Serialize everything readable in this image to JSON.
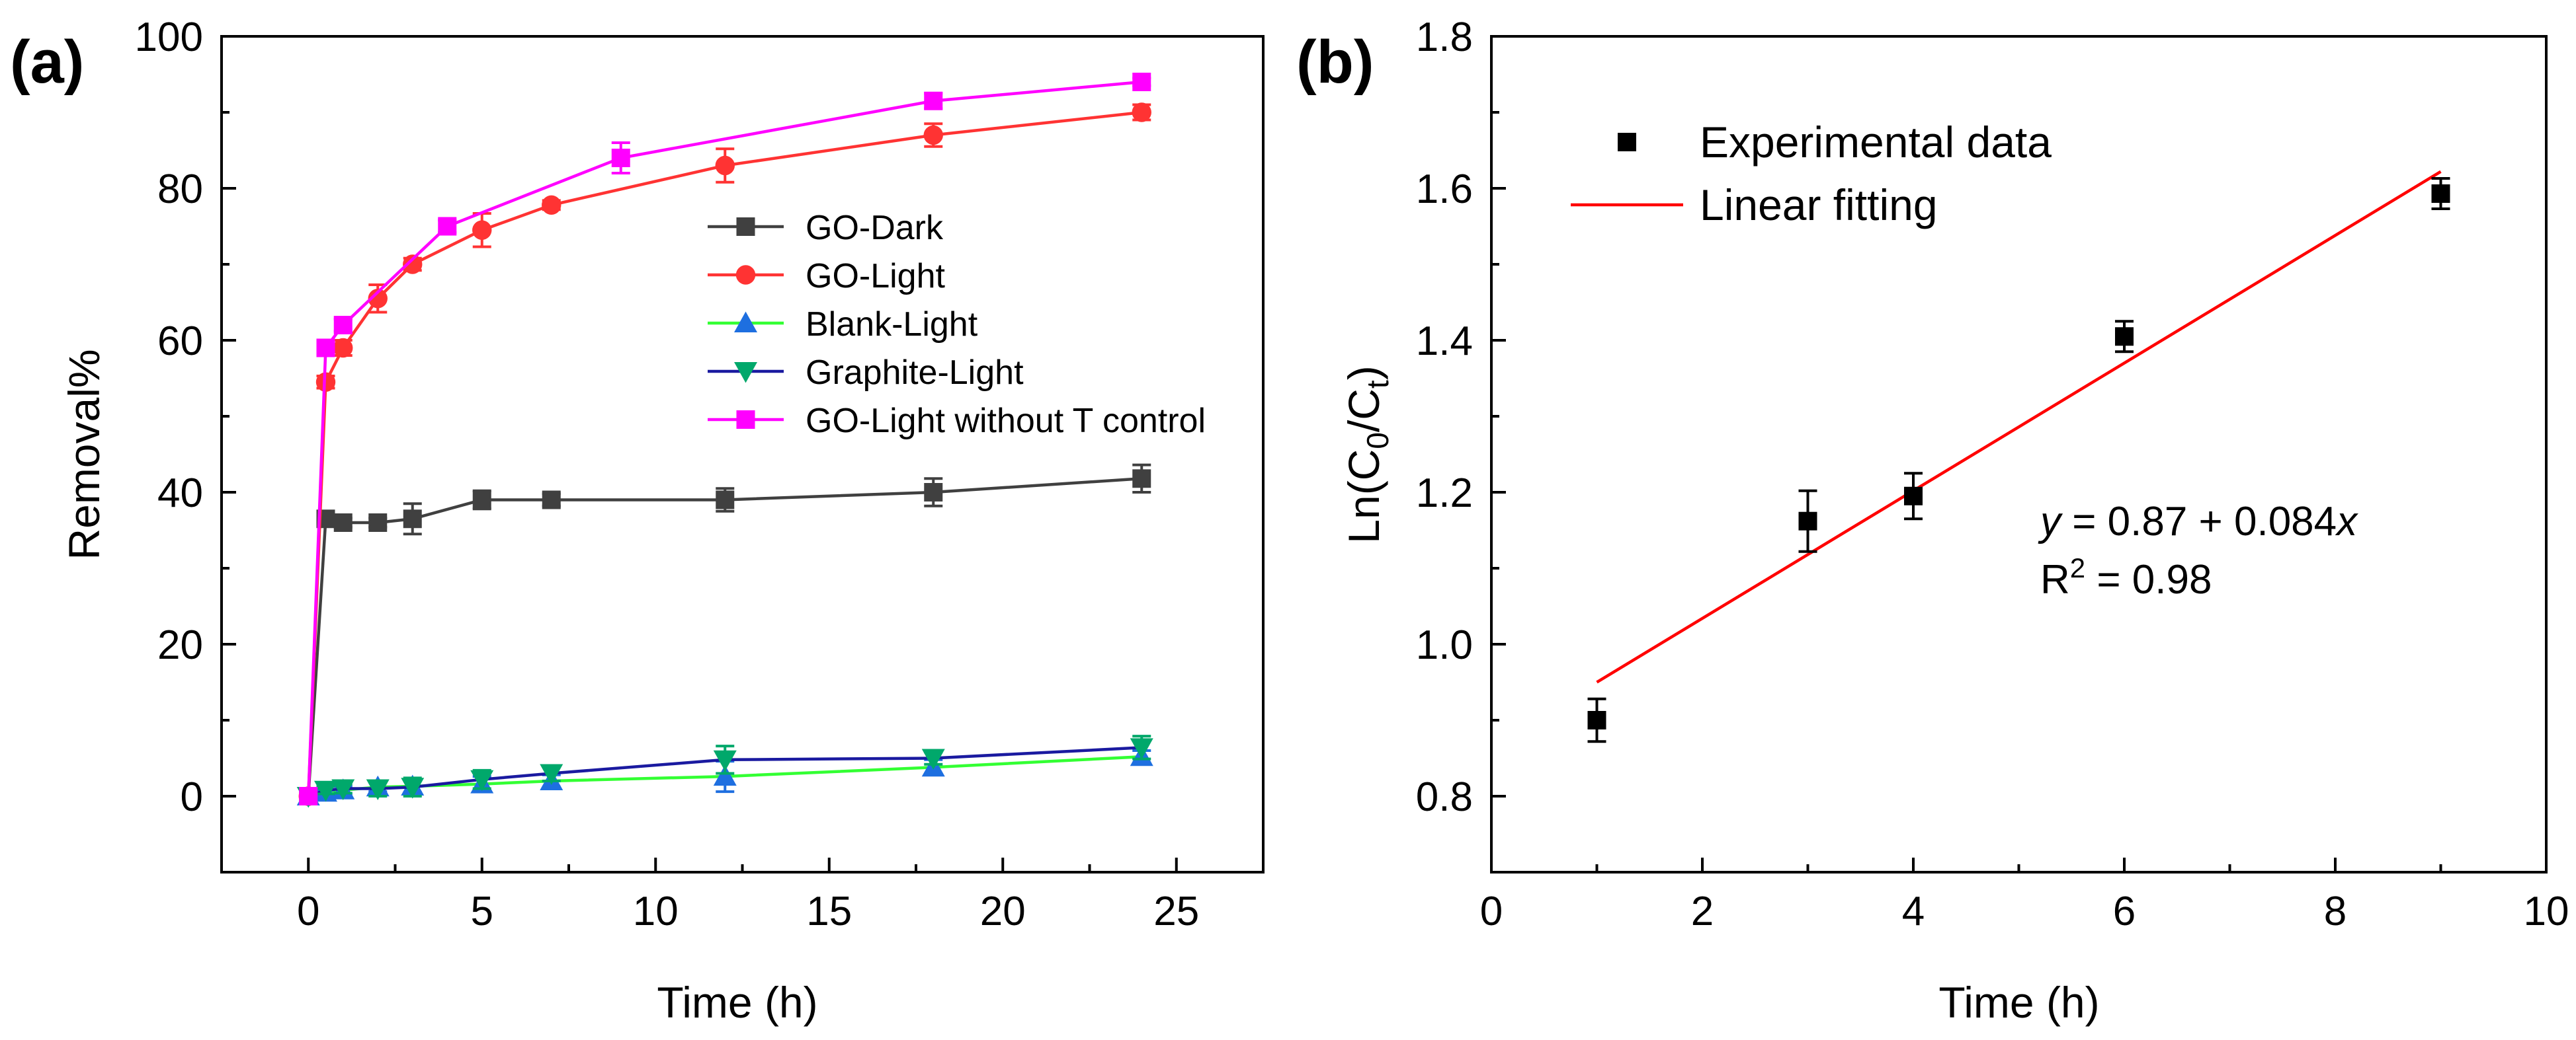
{
  "chart_data": [
    {
      "panel": "(a)",
      "type": "line",
      "xlabel": "Time (h)",
      "ylabel": "Removal%",
      "xlim": [
        -2.5,
        27.5
      ],
      "ylim": [
        -10,
        100
      ],
      "xticks": [
        0,
        5,
        10,
        15,
        20,
        25
      ],
      "yticks": [
        0,
        20,
        40,
        60,
        80,
        100
      ],
      "legend_position": "center-right",
      "series": [
        {
          "name": "GO-Dark",
          "color": "#404040",
          "marker": "square",
          "x": [
            0,
            0.5,
            1,
            2,
            3,
            5,
            7,
            12,
            18,
            24
          ],
          "y": [
            0,
            36.5,
            36,
            36,
            36.5,
            39,
            39,
            39,
            40,
            41.8
          ],
          "err": [
            0,
            0.8,
            0.6,
            0.6,
            2,
            1.2,
            0.8,
            1.5,
            1.8,
            1.8
          ]
        },
        {
          "name": "GO-Light",
          "color": "#ff3333",
          "marker": "circle",
          "x": [
            0,
            0.5,
            1,
            2,
            3,
            5,
            7,
            12,
            18,
            24
          ],
          "y": [
            0,
            54.5,
            59,
            65.5,
            70,
            74.5,
            77.8,
            83,
            87,
            90
          ],
          "err": [
            0,
            0.8,
            1.0,
            1.8,
            0.8,
            2.2,
            0.6,
            2.2,
            1.5,
            1.0
          ]
        },
        {
          "name": "Blank-Light",
          "color": "#1e6fe0",
          "line_color": "#33ff33",
          "marker": "triangle-up",
          "x": [
            0,
            0.5,
            1,
            2,
            3,
            5,
            7,
            12,
            18,
            24
          ],
          "y": [
            0,
            0.5,
            0.8,
            1.2,
            1.3,
            1.6,
            2.0,
            2.6,
            3.8,
            5.2
          ],
          "err": [
            0,
            0.3,
            0.5,
            0.6,
            0.8,
            1.0,
            0.8,
            2.0,
            1.0,
            0.8
          ]
        },
        {
          "name": "Graphite-Light",
          "color": "#00a86b",
          "line_color": "#1a1aa0",
          "marker": "triangle-down",
          "x": [
            0,
            0.5,
            1,
            2,
            3,
            5,
            7,
            12,
            18,
            24
          ],
          "y": [
            0,
            0.8,
            1.0,
            1.0,
            1.2,
            2.2,
            3.0,
            4.8,
            5.0,
            6.4
          ],
          "err": [
            0,
            0.5,
            0.6,
            1.0,
            1.2,
            1.2,
            1.0,
            1.8,
            0.8,
            1.5
          ]
        },
        {
          "name": "GO-Light without T control",
          "color": "#ff00ff",
          "marker": "square",
          "x": [
            0,
            0.5,
            1,
            4,
            9,
            18,
            24
          ],
          "y": [
            0,
            59,
            62,
            75,
            84,
            91.5,
            94
          ],
          "err": [
            0,
            0.5,
            0.8,
            0.8,
            2.0,
            1.0,
            0.5
          ]
        }
      ]
    },
    {
      "panel": "(b)",
      "type": "scatter",
      "xlabel": "Time (h)",
      "ylabel_main": "Ln(C",
      "ylabel_sub0": "0",
      "ylabel_mid": "/C",
      "ylabel_subt": "t",
      "ylabel_end": ")",
      "xlim": [
        0,
        10
      ],
      "ylim": [
        0.7,
        1.8
      ],
      "xticks": [
        0,
        2,
        4,
        6,
        8,
        10
      ],
      "yticks": [
        0.8,
        1.0,
        1.2,
        1.4,
        1.6,
        1.8
      ],
      "legend_position": "top-left",
      "series": [
        {
          "name": "Experimental data",
          "color": "#000000",
          "marker": "square",
          "x": [
            1,
            3,
            4,
            6,
            9
          ],
          "y": [
            0.9,
            1.162,
            1.195,
            1.405,
            1.593
          ],
          "err": [
            0.028,
            0.04,
            0.03,
            0.02,
            0.02
          ]
        },
        {
          "name": "Linear fitting",
          "color": "#ff0000",
          "x": [
            1,
            9
          ],
          "intercept": 0.866,
          "slope": 0.084
        }
      ],
      "annotation": {
        "eq_var1": "y",
        "eq_mid": " = 0.87 + 0.084",
        "eq_var2": "x",
        "r2_prefix": "R",
        "r2_sup": "2",
        "r2_suffix": " = 0.98"
      }
    }
  ]
}
